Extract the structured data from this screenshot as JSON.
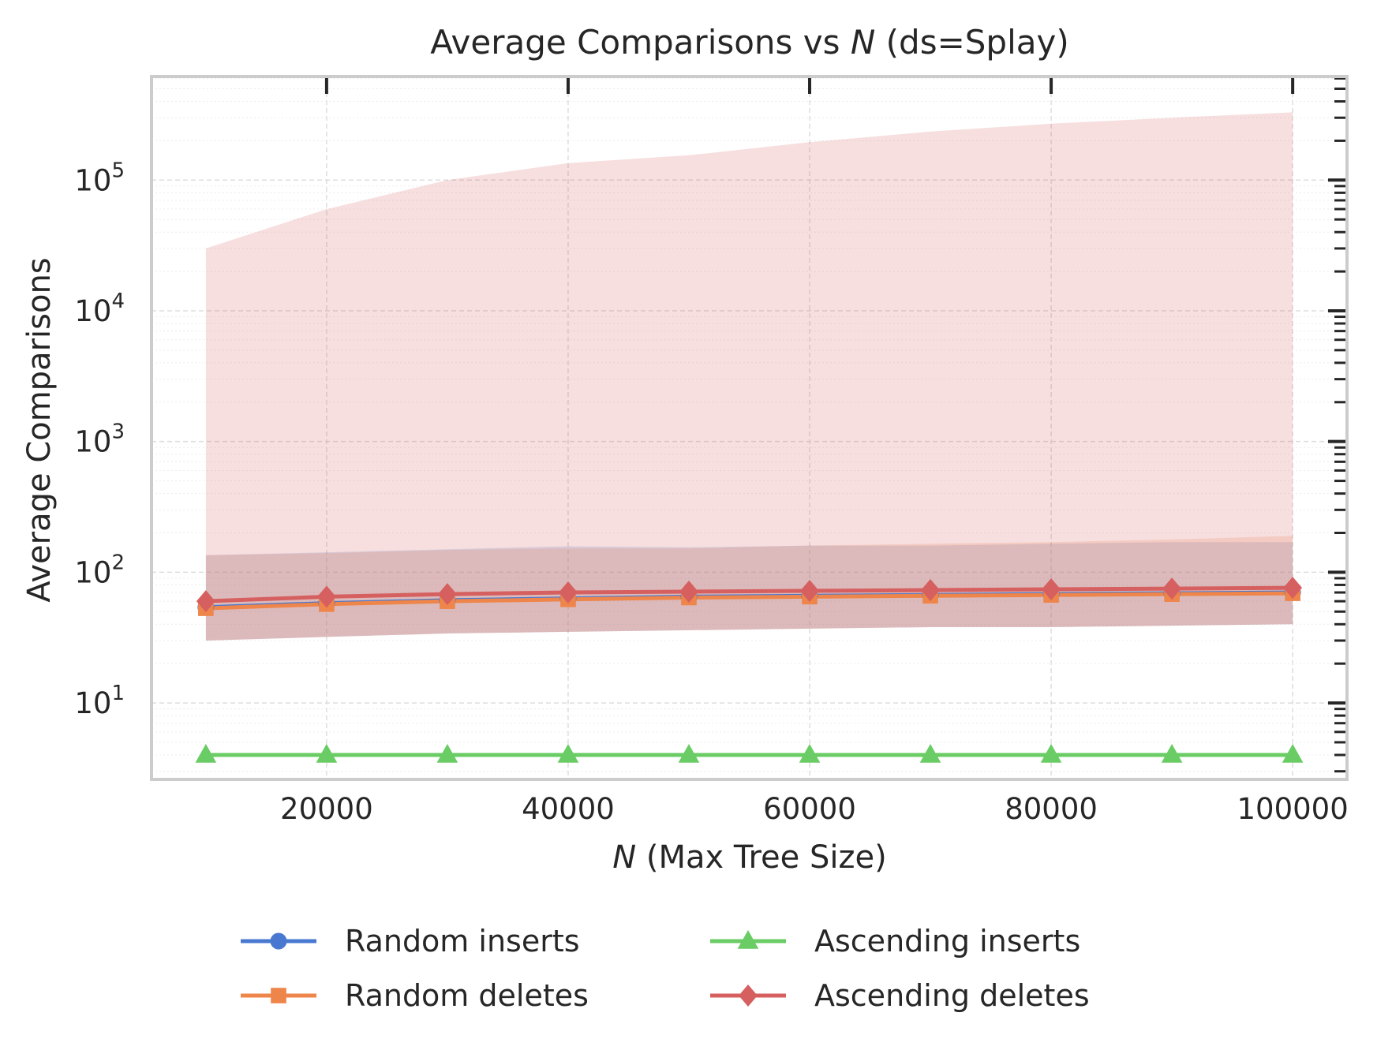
{
  "chart_data": {
    "type": "line",
    "title_prefix": "Average Comparisons vs ",
    "title_var": "N",
    "title_suffix": " (ds=Splay)",
    "xlabel_var": "N",
    "xlabel_suffix": " (Max Tree Size)",
    "ylabel": "Average Comparisons",
    "x": [
      10000,
      20000,
      30000,
      40000,
      50000,
      60000,
      70000,
      80000,
      90000,
      100000
    ],
    "xlim": [
      5500,
      104500
    ],
    "xticks": [
      20000,
      40000,
      60000,
      80000,
      100000
    ],
    "xtick_labels": [
      "20000",
      "40000",
      "60000",
      "80000",
      "100000"
    ],
    "yscale": "log",
    "ylim": [
      2.6,
      620000
    ],
    "yticks": [
      10,
      100,
      1000,
      10000,
      100000
    ],
    "ytick_base": "10",
    "ytick_exponents": [
      "1",
      "2",
      "3",
      "4",
      "5"
    ],
    "grid": true,
    "legend_placement": "below",
    "series": [
      {
        "name": "Random inserts",
        "color": "#4878d0",
        "marker": "circle",
        "values": [
          54,
          58,
          61,
          63,
          65,
          66,
          67,
          68,
          69,
          70
        ],
        "band_low": [
          30,
          32,
          34,
          35,
          36,
          37,
          38,
          38,
          39,
          40
        ],
        "band_high": [
          135,
          142,
          150,
          158,
          155,
          160,
          160,
          165,
          170,
          170
        ]
      },
      {
        "name": "Random deletes",
        "color": "#ee854a",
        "marker": "square",
        "values": [
          53,
          57,
          60,
          62,
          64,
          65,
          66,
          67,
          68,
          69
        ],
        "band_low": [
          30,
          32,
          34,
          35,
          36,
          37,
          38,
          38,
          39,
          40
        ],
        "band_high": [
          135,
          140,
          148,
          152,
          152,
          160,
          165,
          170,
          178,
          190
        ]
      },
      {
        "name": "Ascending inserts",
        "color": "#6acc64",
        "marker": "triangle",
        "values": [
          4,
          4,
          4,
          4,
          4,
          4,
          4,
          4,
          4,
          4
        ],
        "band_low": [
          4,
          4,
          4,
          4,
          4,
          4,
          4,
          4,
          4,
          4
        ],
        "band_high": [
          4,
          4,
          4,
          4,
          4,
          4,
          4,
          4,
          4,
          4
        ]
      },
      {
        "name": "Ascending deletes",
        "color": "#d65f5f",
        "marker": "diamond",
        "values": [
          60,
          65,
          68,
          70,
          71,
          72,
          73,
          74,
          75,
          76
        ],
        "band_low": [
          30,
          32,
          34,
          35,
          36,
          37,
          38,
          38,
          39,
          40
        ],
        "band_high": [
          30000,
          60000,
          100000,
          135000,
          155000,
          195000,
          235000,
          270000,
          300000,
          330000
        ]
      }
    ]
  }
}
